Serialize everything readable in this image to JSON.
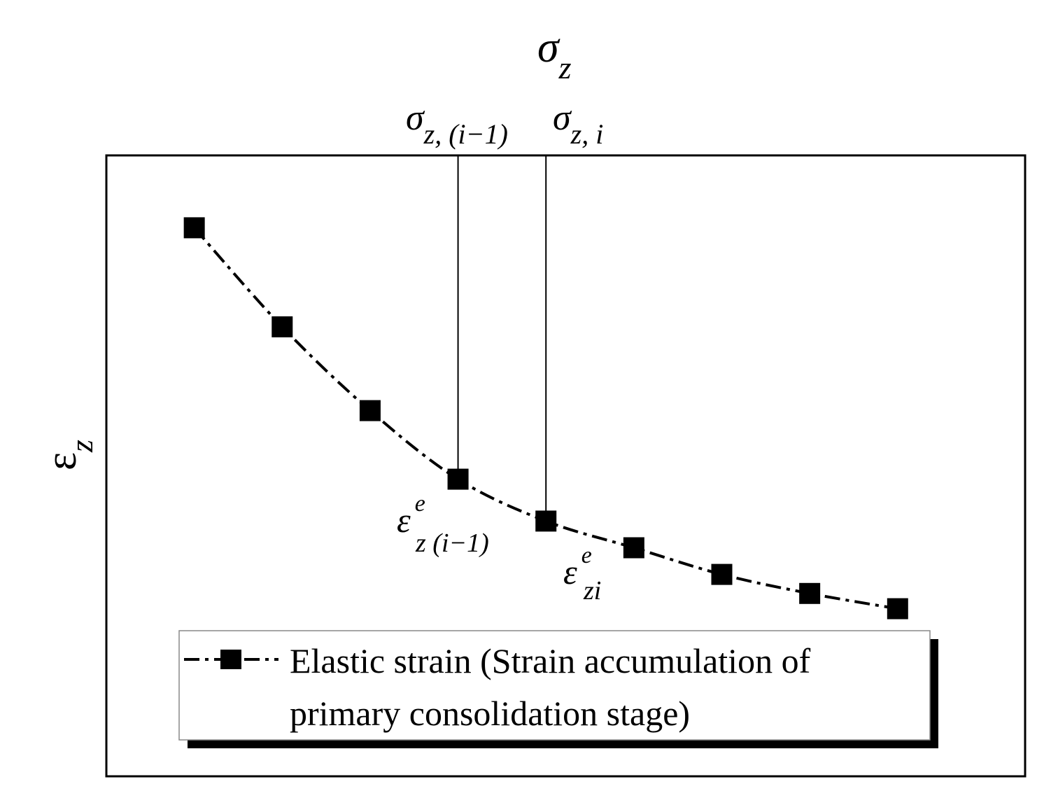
{
  "chart_data": {
    "type": "line",
    "xlabel": {
      "symbol": "σ",
      "sub": "z"
    },
    "ylabel": {
      "symbol": "ε",
      "sub": "z"
    },
    "series": [
      {
        "name": "Elastic strain (Strain accumulation of primary consolidation stage)",
        "line_style": "dash-dot",
        "marker": "square",
        "color": "#000000",
        "points": [
          {
            "x": 1,
            "y": 1.0
          },
          {
            "x": 2,
            "y": 0.74
          },
          {
            "x": 3,
            "y": 0.52
          },
          {
            "x": 4,
            "y": 0.34
          },
          {
            "x": 5,
            "y": 0.23
          },
          {
            "x": 6,
            "y": 0.16
          },
          {
            "x": 7,
            "y": 0.09
          },
          {
            "x": 8,
            "y": 0.04
          },
          {
            "x": 9,
            "y": 0.0
          }
        ]
      }
    ],
    "xlim": [
      0,
      10.45
    ],
    "ylim": [
      -0.44,
      1.19
    ],
    "grid": false,
    "legend": {
      "placement": "bottom-right",
      "lines": [
        "Elastic strain (Strain accumulation of",
        "primary consolidation stage)"
      ]
    },
    "reference_lines": [
      {
        "x": 4,
        "label": {
          "symbol": "σ",
          "sub": "z, (i−1)"
        }
      },
      {
        "x": 5,
        "label": {
          "symbol": "σ",
          "sub": "z, i"
        }
      }
    ],
    "annotations": [
      {
        "at_point": 4,
        "symbol": "ε",
        "sup": "e",
        "sub": "z (i−1)"
      },
      {
        "at_point": 5,
        "symbol": "ε",
        "sup": "e",
        "sub": "zi"
      }
    ]
  }
}
